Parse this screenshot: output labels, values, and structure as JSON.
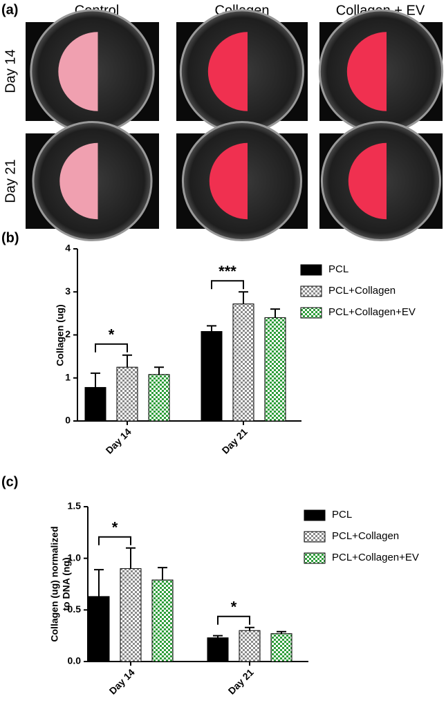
{
  "panel_a": {
    "label": "(a)",
    "columns": [
      "Control",
      "Collagen",
      "Collagen + EV"
    ],
    "rows": [
      "Day 14",
      "Day 21"
    ]
  },
  "chart_data": [
    {
      "type": "bar",
      "panel_label": "(b)",
      "ylabel": "Collagen (ug)",
      "categories": [
        "Day 14",
        "Day 21"
      ],
      "series": [
        {
          "name": "PCL",
          "color": "#000000",
          "pattern": "solid",
          "values": [
            0.78,
            2.08
          ],
          "errors": [
            0.33,
            0.13
          ]
        },
        {
          "name": "PCL+Collagen",
          "color": "#8a8a8a",
          "pattern": "checker",
          "values": [
            1.25,
            2.72
          ],
          "errors": [
            0.28,
            0.28
          ]
        },
        {
          "name": "PCL+Collagen+EV",
          "color": "#2e9e3a",
          "pattern": "checker",
          "values": [
            1.08,
            2.4
          ],
          "errors": [
            0.17,
            0.2
          ]
        }
      ],
      "annotations": [
        "*",
        "***"
      ],
      "ylim": [
        0,
        4
      ],
      "yticks": [
        0,
        1,
        2,
        3,
        4
      ],
      "legend": "right"
    },
    {
      "type": "bar",
      "panel_label": "(c)",
      "ylabel": [
        "Collagen (ug) normalized",
        "to DNA (ng)"
      ],
      "categories": [
        "Day 14",
        "Day 21"
      ],
      "series": [
        {
          "name": "PCL",
          "color": "#000000",
          "pattern": "solid",
          "values": [
            0.63,
            0.23
          ],
          "errors": [
            0.26,
            0.02
          ]
        },
        {
          "name": "PCL+Collagen",
          "color": "#8a8a8a",
          "pattern": "checker",
          "values": [
            0.9,
            0.3
          ],
          "errors": [
            0.2,
            0.03
          ]
        },
        {
          "name": "PCL+Collagen+EV",
          "color": "#2e9e3a",
          "pattern": "checker",
          "values": [
            0.79,
            0.27
          ],
          "errors": [
            0.12,
            0.02
          ]
        }
      ],
      "annotations": [
        "*",
        "*"
      ],
      "ylim": [
        0,
        1.5
      ],
      "yticks": [
        {
          "value": 0,
          "label": "0.0"
        },
        {
          "value": 0.5,
          "label": "0.5"
        },
        {
          "value": 1,
          "label": "1.0"
        },
        {
          "value": 1.5,
          "label": "1.5"
        }
      ],
      "legend": "right"
    }
  ]
}
